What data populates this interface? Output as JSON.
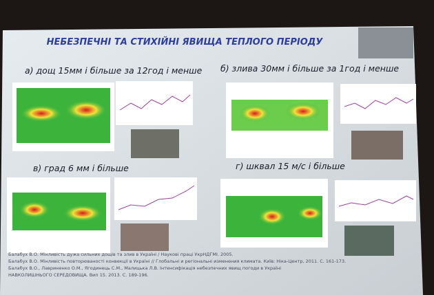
{
  "slide": {
    "title": "НЕБЕЗПЕЧНІ ТА СТИХІЙНІ ЯВИЩА ТЕПЛОГО ПЕРІОДУ",
    "panels": [
      {
        "caption": "а) дощ 15мм і більше за 12год і менше"
      },
      {
        "caption": "б) злива 30мм і більше за 1год і менше"
      },
      {
        "caption": "в) град 6 мм і більше"
      },
      {
        "caption": "г) шквал 15 м/с і більше"
      }
    ],
    "references": [
      "Балабух В.О. Мінливість дужа сильних дощів та злив в Україні / Наукові праці УкрНДГМІ. 2005.",
      "Балабух В.О. Мінливість повторюваності конвекції в Україні // Глобальні и регіональні изменения климата. Київ: Ніка-Центр, 2011. С. 161-173.",
      "Балабух В.О., Лавриненко О.М., Ягодинець С.М., Малицька Л.В. Інтенсифікація небезпечних явищ погоди в Україні",
      "НАВКОЛИШНЬОГО СЕРЕДОВИЩА. Вип 15. 2013. С. 189-196."
    ]
  }
}
